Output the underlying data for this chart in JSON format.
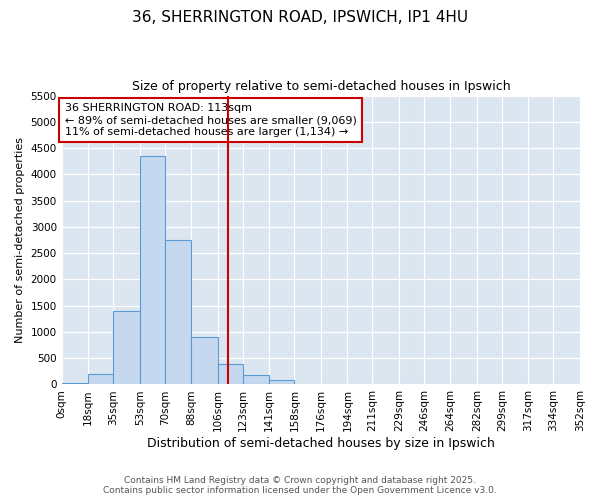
{
  "title1": "36, SHERRINGTON ROAD, IPSWICH, IP1 4HU",
  "title2": "Size of property relative to semi-detached houses in Ipswich",
  "xlabel": "Distribution of semi-detached houses by size in Ipswich",
  "ylabel": "Number of semi-detached properties",
  "annotation_line1": "36 SHERRINGTON ROAD: 113sqm",
  "annotation_line2": "← 89% of semi-detached houses are smaller (9,069)",
  "annotation_line3": "11% of semi-detached houses are larger (1,134) →",
  "footnote1": "Contains HM Land Registry data © Crown copyright and database right 2025.",
  "footnote2": "Contains public sector information licensed under the Open Government Licence v3.0.",
  "property_size": 113,
  "bin_edges": [
    0,
    18,
    35,
    53,
    70,
    88,
    106,
    123,
    141,
    158,
    176,
    194,
    211,
    229,
    246,
    264,
    282,
    299,
    317,
    334,
    352
  ],
  "bar_heights": [
    30,
    200,
    1400,
    4350,
    2750,
    900,
    380,
    175,
    85,
    0,
    0,
    0,
    0,
    0,
    0,
    0,
    0,
    0,
    0,
    0
  ],
  "bar_color": "#c5d8ef",
  "bar_edge_color": "#5b9bd5",
  "vline_color": "#cc0000",
  "annotation_box_edgecolor": "#cc0000",
  "background_color": "#dce6f0",
  "grid_color": "#ffffff",
  "ylim": [
    0,
    5500
  ],
  "yticks": [
    0,
    500,
    1000,
    1500,
    2000,
    2500,
    3000,
    3500,
    4000,
    4500,
    5000,
    5500
  ],
  "title1_fontsize": 11,
  "title2_fontsize": 9,
  "xlabel_fontsize": 9,
  "ylabel_fontsize": 8,
  "annotation_fontsize": 8,
  "tick_fontsize": 7.5,
  "footnote_fontsize": 6.5
}
